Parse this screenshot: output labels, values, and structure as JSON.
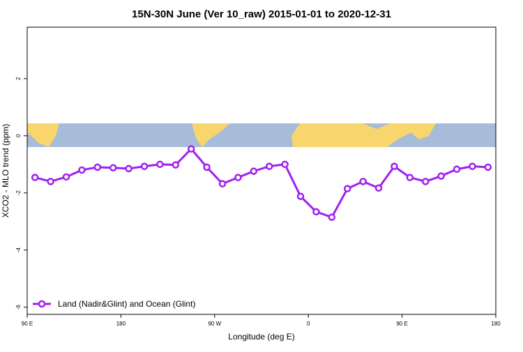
{
  "chart_data": {
    "type": "line",
    "title": "15N-30N June (Ver 10_raw)   2015-01-01 to 2020-12-31",
    "x_label": "Longitude (deg E)",
    "y_label": "XCO2 - MLO trend (ppm)",
    "xlim": [
      90,
      540
    ],
    "xticks": [
      {
        "value": 90,
        "label": "90 E"
      },
      {
        "value": 180,
        "label": "180"
      },
      {
        "value": 270,
        "label": "90 W"
      },
      {
        "value": 360,
        "label": "0"
      },
      {
        "value": 450,
        "label": "90 E"
      },
      {
        "value": 540,
        "label": "180"
      }
    ],
    "ylim": [
      -6.25,
      3.8
    ],
    "yticks": [
      -6,
      -4,
      -2,
      0,
      2
    ],
    "legend": "bottom-left",
    "x": [
      97.5,
      112.5,
      127.5,
      142.5,
      157.5,
      172.5,
      187.5,
      202.5,
      217.5,
      232.5,
      247.5,
      262.5,
      277.5,
      292.5,
      307.5,
      322.5,
      337.5,
      352.5,
      367.5,
      382.5,
      397.5,
      412.5,
      427.5,
      442.5,
      457.5,
      472.5,
      487.5,
      502.5,
      517.5,
      532.5
    ],
    "series": [
      {
        "name": "Land (Nadir&Glint) and Ocean (Glint)",
        "color": "#a020f0",
        "values": [
          -1.46,
          -1.6,
          -1.44,
          -1.2,
          -1.1,
          -1.12,
          -1.15,
          -1.07,
          -1.0,
          -1.02,
          -0.46,
          -1.1,
          -1.68,
          -1.46,
          -1.24,
          -1.07,
          -1.0,
          -2.12,
          -2.66,
          -2.85,
          -1.85,
          -1.6,
          -1.83,
          -1.07,
          -1.46,
          -1.6,
          -1.41,
          -1.17,
          -1.07,
          -1.1
        ]
      }
    ]
  }
}
